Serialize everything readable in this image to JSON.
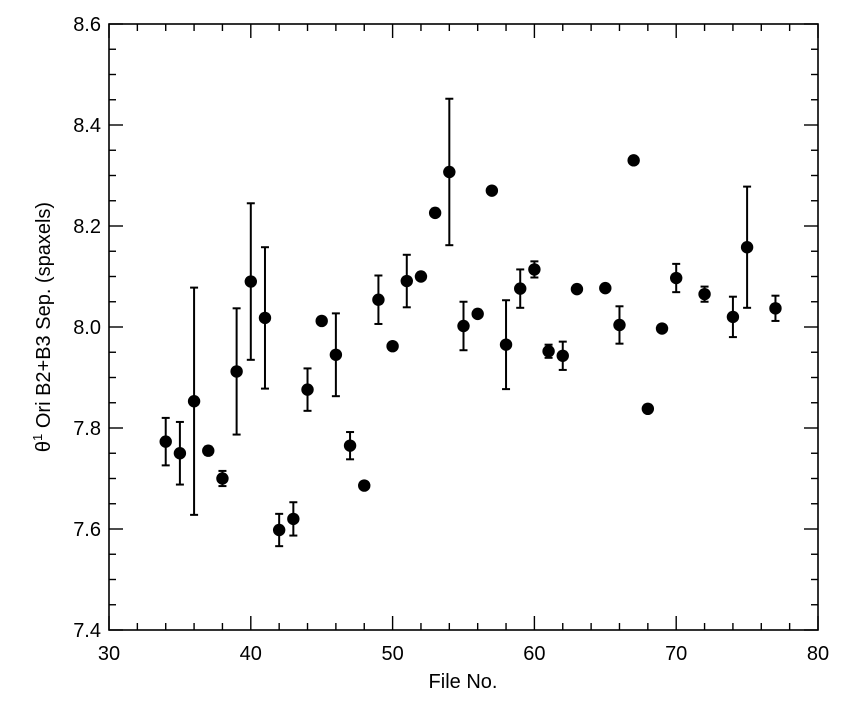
{
  "chart_data": {
    "type": "scatter",
    "title": "",
    "xlabel": "File No.",
    "ylabel": {
      "symbol": "θ",
      "superscript": "1",
      "rest": " Ori B2+B3 Sep. (spaxels)"
    },
    "xlim": [
      30,
      80
    ],
    "ylim": [
      7.4,
      8.6
    ],
    "x_ticks": [
      "30",
      "40",
      "50",
      "60",
      "70",
      "80"
    ],
    "y_ticks": [
      "7.4",
      "7.6",
      "7.8",
      "8.0",
      "8.2",
      "8.4",
      "8.6"
    ],
    "x_tick_values": [
      30,
      40,
      50,
      60,
      70,
      80
    ],
    "y_tick_values": [
      7.4,
      7.6,
      7.8,
      8.0,
      8.2,
      8.4,
      8.6
    ],
    "x_minor_step": 2,
    "y_minor_step": 0.05,
    "grid": false,
    "legend": "none",
    "marker_color": "#000000",
    "points": [
      {
        "x": 34,
        "y": 7.773,
        "err": 0.047
      },
      {
        "x": 35,
        "y": 7.75,
        "err": 0.062
      },
      {
        "x": 36,
        "y": 7.853,
        "err": 0.225
      },
      {
        "x": 37,
        "y": 7.755,
        "err": 0.008
      },
      {
        "x": 38,
        "y": 7.7,
        "err": 0.015
      },
      {
        "x": 39,
        "y": 7.912,
        "err": 0.125
      },
      {
        "x": 40,
        "y": 8.09,
        "err": 0.155
      },
      {
        "x": 41,
        "y": 8.018,
        "err": 0.14
      },
      {
        "x": 42,
        "y": 7.598,
        "err": 0.032
      },
      {
        "x": 43,
        "y": 7.62,
        "err": 0.033
      },
      {
        "x": 44,
        "y": 7.876,
        "err": 0.042
      },
      {
        "x": 45,
        "y": 8.012,
        "err": 0
      },
      {
        "x": 46,
        "y": 7.945,
        "err": 0.082
      },
      {
        "x": 47,
        "y": 7.765,
        "err": 0.027
      },
      {
        "x": 48,
        "y": 7.686,
        "err": 0
      },
      {
        "x": 49,
        "y": 8.054,
        "err": 0.048
      },
      {
        "x": 50,
        "y": 7.962,
        "err": 0
      },
      {
        "x": 51,
        "y": 8.091,
        "err": 0.052
      },
      {
        "x": 52,
        "y": 8.1,
        "err": 0
      },
      {
        "x": 53,
        "y": 8.226,
        "err": 0
      },
      {
        "x": 54,
        "y": 8.307,
        "err": 0.145
      },
      {
        "x": 55,
        "y": 8.002,
        "err": 0.048
      },
      {
        "x": 56,
        "y": 8.026,
        "err": 0
      },
      {
        "x": 57,
        "y": 8.27,
        "err": 0
      },
      {
        "x": 58,
        "y": 7.965,
        "err": 0.088
      },
      {
        "x": 59,
        "y": 8.076,
        "err": 0.038
      },
      {
        "x": 60,
        "y": 8.114,
        "err": 0.016
      },
      {
        "x": 61,
        "y": 7.952,
        "err": 0.013
      },
      {
        "x": 62,
        "y": 7.943,
        "err": 0.028
      },
      {
        "x": 63,
        "y": 8.075,
        "err": 0
      },
      {
        "x": 65,
        "y": 8.077,
        "err": 0
      },
      {
        "x": 66,
        "y": 8.004,
        "err": 0.037
      },
      {
        "x": 67,
        "y": 8.33,
        "err": 0
      },
      {
        "x": 68,
        "y": 7.838,
        "err": 0
      },
      {
        "x": 69,
        "y": 7.997,
        "err": 0
      },
      {
        "x": 70,
        "y": 8.097,
        "err": 0.028
      },
      {
        "x": 72,
        "y": 8.065,
        "err": 0.015
      },
      {
        "x": 74,
        "y": 8.02,
        "err": 0.04
      },
      {
        "x": 75,
        "y": 8.158,
        "err": 0.12
      },
      {
        "x": 77,
        "y": 8.037,
        "err": 0.025
      }
    ]
  }
}
